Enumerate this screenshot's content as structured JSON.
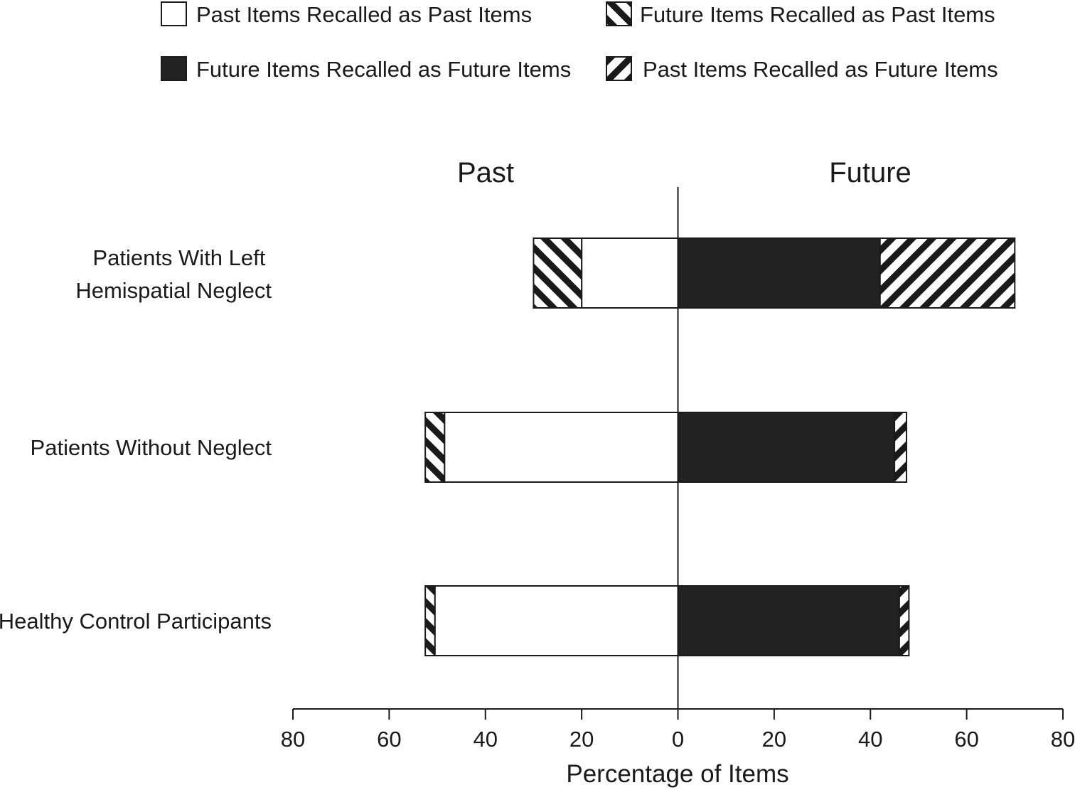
{
  "chart_data": {
    "type": "bar",
    "orientation": "horizontal-diverging",
    "xlabel": "Percentage of Items",
    "side_labels": {
      "left": "Past",
      "right": "Future"
    },
    "xlim": [
      -80,
      80
    ],
    "x_ticks": [
      -80,
      -60,
      -40,
      -20,
      0,
      20,
      40,
      60,
      80
    ],
    "x_tick_labels": [
      "80",
      "60",
      "40",
      "20",
      "0",
      "20",
      "40",
      "60",
      "80"
    ],
    "categories": [
      "Patients With Left Hemispatial Neglect",
      "Patients Without Neglect",
      "Healthy Control Participants"
    ],
    "category_label_lines": [
      [
        "Patients With Left",
        "Hemispatial Neglect"
      ],
      [
        "Patients Without Neglect"
      ],
      [
        "Healthy Control Participants"
      ]
    ],
    "series": [
      {
        "name": "Past Items Recalled as Past Items",
        "side": "past",
        "pattern": "solid-white",
        "values": [
          20,
          48.5,
          50.5
        ]
      },
      {
        "name": "Future Items Recalled as Past Items",
        "side": "past",
        "pattern": "hatch-backslash",
        "values": [
          10,
          4,
          2
        ]
      },
      {
        "name": "Future Items Recalled as Future Items",
        "side": "future",
        "pattern": "solid-black",
        "values": [
          42,
          45,
          46
        ]
      },
      {
        "name": "Past Items Recalled as Future Items",
        "side": "future",
        "pattern": "hatch-slash",
        "values": [
          28,
          2.5,
          2
        ]
      }
    ],
    "legend_placement": "top",
    "grid": false,
    "colors": {
      "ink": "#1a1a1a",
      "dark_fill": "#222222",
      "light_fill": "#ffffff"
    }
  }
}
